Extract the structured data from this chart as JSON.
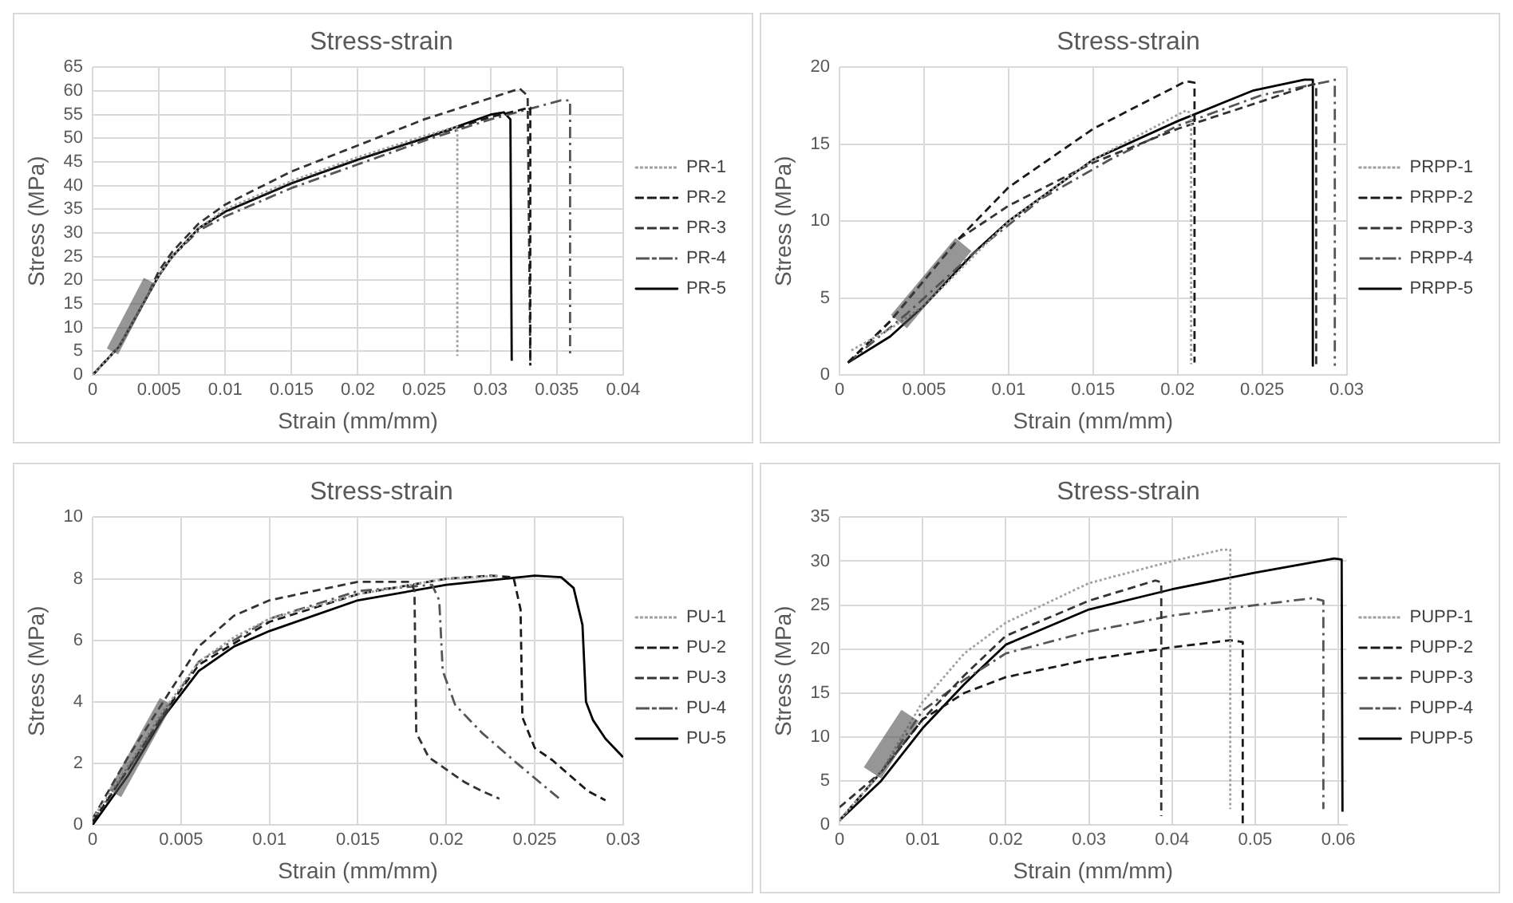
{
  "chart_data": [
    {
      "type": "line",
      "title": "Stress-strain",
      "xlabel": "Strain (mm/mm)",
      "ylabel": "Stress (MPa)",
      "xlim": [
        0,
        0.04
      ],
      "xticks": [
        0,
        0.005,
        0.01,
        0.015,
        0.02,
        0.025,
        0.03,
        0.035,
        0.04
      ],
      "ylim": [
        0,
        65
      ],
      "yticks": [
        0,
        5,
        10,
        15,
        20,
        25,
        30,
        35,
        40,
        45,
        50,
        55,
        60,
        65
      ],
      "grid": true,
      "legend": "right",
      "marker": "none",
      "series": [
        {
          "name": "PR-1",
          "color": "#a0a0a0",
          "line_style": "dotted",
          "x": [
            0,
            0.002,
            0.004,
            0.005,
            0.006,
            0.008,
            0.01,
            0.015,
            0.02,
            0.025,
            0.0275,
            0.0275
          ],
          "values": [
            0,
            6,
            16,
            21,
            25,
            31,
            35,
            41,
            46,
            50.5,
            52.5,
            4
          ]
        },
        {
          "name": "PR-2",
          "color": "#1a1a1a",
          "line_style": "dashed",
          "x": [
            0,
            0.002,
            0.004,
            0.005,
            0.006,
            0.008,
            0.01,
            0.015,
            0.02,
            0.025,
            0.03,
            0.033,
            0.033
          ],
          "values": [
            0,
            6,
            16,
            21,
            25,
            31,
            34.5,
            40.5,
            45.5,
            50,
            54.5,
            56.5,
            2
          ]
        },
        {
          "name": "PR-3",
          "color": "#333333",
          "line_style": "dashed",
          "x": [
            0,
            0.002,
            0.004,
            0.005,
            0.006,
            0.008,
            0.01,
            0.015,
            0.02,
            0.025,
            0.03,
            0.0322,
            0.0328,
            0.033
          ],
          "values": [
            0,
            6,
            16,
            22,
            26,
            32,
            36,
            43,
            48.5,
            54,
            58.5,
            60.5,
            59,
            3
          ]
        },
        {
          "name": "PR-4",
          "color": "#555555",
          "line_style": "dashdot",
          "x": [
            0,
            0.002,
            0.004,
            0.005,
            0.006,
            0.008,
            0.01,
            0.015,
            0.02,
            0.025,
            0.03,
            0.0353,
            0.036,
            0.036
          ],
          "values": [
            0,
            6,
            16,
            21,
            25,
            30.5,
            33.5,
            39.5,
            44.5,
            49.5,
            54,
            58,
            58,
            4
          ]
        },
        {
          "name": "PR-5",
          "color": "#000000",
          "line_style": "solid",
          "x": [
            0,
            0.002,
            0.004,
            0.005,
            0.006,
            0.008,
            0.01,
            0.015,
            0.02,
            0.025,
            0.03,
            0.031,
            0.0315,
            0.0316
          ],
          "values": [
            0,
            6,
            16,
            21,
            25,
            31,
            34.5,
            40.5,
            45.5,
            50,
            55,
            55.5,
            54,
            3
          ]
        }
      ]
    },
    {
      "type": "line",
      "title": "Stress-strain",
      "xlabel": "Strain (mm/mm)",
      "ylabel": "Stress (MPa)",
      "xlim": [
        0,
        0.03
      ],
      "xticks": [
        0,
        0.005,
        0.01,
        0.015,
        0.02,
        0.025,
        0.03
      ],
      "ylim": [
        0,
        20
      ],
      "yticks": [
        0,
        5,
        10,
        15,
        20
      ],
      "grid": true,
      "legend": "right",
      "marker": "none",
      "series": [
        {
          "name": "PRPP-1",
          "color": "#a0a0a0",
          "line_style": "dotted",
          "x": [
            0.0007,
            0.003,
            0.005,
            0.01,
            0.015,
            0.0205,
            0.0208,
            0.0208
          ],
          "values": [
            1.6,
            3,
            4.5,
            10,
            14,
            17.2,
            17,
            0.7
          ]
        },
        {
          "name": "PRPP-2",
          "color": "#1a1a1a",
          "line_style": "dashed",
          "x": [
            0.0005,
            0.003,
            0.007,
            0.01,
            0.015,
            0.0205,
            0.021,
            0.021
          ],
          "values": [
            0.8,
            3.5,
            8.8,
            12.2,
            16,
            19.1,
            19,
            0.8
          ]
        },
        {
          "name": "PRPP-3",
          "color": "#333333",
          "line_style": "dashed",
          "x": [
            0.0005,
            0.003,
            0.007,
            0.01,
            0.015,
            0.02,
            0.025,
            0.028,
            0.0282,
            0.0282
          ],
          "values": [
            0.8,
            3.5,
            8.8,
            11,
            13.8,
            16,
            17.8,
            18.9,
            18.9,
            0.6
          ]
        },
        {
          "name": "PRPP-4",
          "color": "#555555",
          "line_style": "dashdot",
          "x": [
            0.0005,
            0.004,
            0.008,
            0.012,
            0.016,
            0.02,
            0.025,
            0.029,
            0.0293,
            0.0293
          ],
          "values": [
            0.8,
            4,
            8,
            11.5,
            14,
            16.2,
            18.2,
            19.1,
            19.2,
            0.6
          ]
        },
        {
          "name": "PRPP-5",
          "color": "#000000",
          "line_style": "solid",
          "x": [
            0.0005,
            0.003,
            0.005,
            0.008,
            0.01,
            0.015,
            0.02,
            0.0245,
            0.0275,
            0.028,
            0.028
          ],
          "values": [
            0.8,
            2.5,
            4.5,
            8,
            10,
            14,
            16.5,
            18.5,
            19.2,
            19.2,
            0.6
          ]
        }
      ]
    },
    {
      "type": "line",
      "title": "Stress-strain",
      "xlabel": "Strain (mm/mm)",
      "ylabel": "Stress (MPa)",
      "xlim": [
        0,
        0.03
      ],
      "xticks": [
        0,
        0.005,
        0.01,
        0.015,
        0.02,
        0.025,
        0.03
      ],
      "ylim": [
        0,
        10
      ],
      "yticks": [
        0,
        2,
        4,
        6,
        8,
        10
      ],
      "grid": true,
      "legend": "right",
      "marker": "none",
      "series": [
        {
          "name": "PU-1",
          "color": "#a0a0a0",
          "line_style": "dotted",
          "x": [
            0,
            0.002,
            0.004,
            0.006,
            0.008,
            0.01,
            0.015,
            0.02,
            0.023
          ],
          "values": [
            0.2,
            1.9,
            3.7,
            5.3,
            6.1,
            6.7,
            7.5,
            8,
            8.1
          ]
        },
        {
          "name": "PU-2",
          "color": "#1a1a1a",
          "line_style": "dashed",
          "x": [
            0,
            0.002,
            0.004,
            0.006,
            0.01,
            0.015,
            0.02,
            0.0225,
            0.0238,
            0.0242,
            0.0243,
            0.025,
            0.026,
            0.027,
            0.028,
            0.029
          ],
          "values": [
            0.1,
            1.8,
            3.6,
            5.2,
            6.6,
            7.5,
            8,
            8.1,
            8.05,
            7,
            3.5,
            2.5,
            2.1,
            1.6,
            1.1,
            0.8
          ]
        },
        {
          "name": "PU-3",
          "color": "#333333",
          "line_style": "dashed",
          "x": [
            0,
            0.002,
            0.004,
            0.006,
            0.008,
            0.01,
            0.015,
            0.018,
            0.0182,
            0.0183,
            0.019,
            0.02,
            0.021,
            0.022,
            0.023
          ],
          "values": [
            0.2,
            2.2,
            4,
            5.8,
            6.8,
            7.3,
            7.9,
            7.9,
            7.6,
            3,
            2.2,
            1.8,
            1.4,
            1.1,
            0.85
          ]
        },
        {
          "name": "PU-4",
          "color": "#555555",
          "line_style": "dashdot",
          "x": [
            0,
            0.002,
            0.004,
            0.006,
            0.01,
            0.015,
            0.0192,
            0.0196,
            0.0198,
            0.0205,
            0.022,
            0.024,
            0.0265
          ],
          "values": [
            0.1,
            1.8,
            3.6,
            5.3,
            6.7,
            7.6,
            7.8,
            7.3,
            5,
            3.9,
            3,
            2,
            0.8
          ]
        },
        {
          "name": "PU-5",
          "color": "#000000",
          "line_style": "solid",
          "x": [
            0,
            0.002,
            0.004,
            0.006,
            0.008,
            0.01,
            0.015,
            0.02,
            0.025,
            0.0265,
            0.0272,
            0.0277,
            0.0279,
            0.0283,
            0.029,
            0.03
          ],
          "values": [
            0,
            1.6,
            3.5,
            5,
            5.8,
            6.3,
            7.3,
            7.8,
            8.1,
            8.05,
            7.7,
            6.5,
            4,
            3.4,
            2.8,
            2.2
          ]
        }
      ]
    },
    {
      "type": "line",
      "title": "Stress-strain",
      "xlabel": "Strain (mm/mm)",
      "ylabel": "Stress (MPa)",
      "xlim": [
        0,
        0.061
      ],
      "xticks": [
        0,
        0.01,
        0.02,
        0.03,
        0.04,
        0.05,
        0.06
      ],
      "ylim": [
        0,
        35
      ],
      "yticks": [
        0,
        5,
        10,
        15,
        20,
        25,
        30,
        35
      ],
      "grid": true,
      "legend": "right",
      "marker": "none",
      "series": [
        {
          "name": "PUPP-1",
          "color": "#a0a0a0",
          "line_style": "dotted",
          "x": [
            0,
            0.005,
            0.01,
            0.015,
            0.02,
            0.03,
            0.04,
            0.046,
            0.047,
            0.047
          ],
          "values": [
            0.5,
            6,
            14,
            19.5,
            23,
            27.5,
            30,
            31.3,
            31.3,
            1.8
          ]
        },
        {
          "name": "PUPP-2",
          "color": "#1a1a1a",
          "line_style": "dashed",
          "x": [
            0,
            0.005,
            0.01,
            0.015,
            0.02,
            0.03,
            0.04,
            0.047,
            0.0485,
            0.0485
          ],
          "values": [
            0.5,
            6,
            12,
            15,
            16.8,
            18.8,
            20.2,
            21,
            20.8,
            0
          ]
        },
        {
          "name": "PUPP-3",
          "color": "#333333",
          "line_style": "dashed",
          "x": [
            0,
            0.005,
            0.01,
            0.015,
            0.02,
            0.03,
            0.038,
            0.0387,
            0.0387
          ],
          "values": [
            2,
            6,
            12,
            17,
            21.5,
            25.5,
            27.8,
            27.6,
            1
          ]
        },
        {
          "name": "PUPP-4",
          "color": "#555555",
          "line_style": "dashdot",
          "x": [
            0,
            0.005,
            0.01,
            0.015,
            0.02,
            0.03,
            0.04,
            0.05,
            0.057,
            0.0582,
            0.0582
          ],
          "values": [
            0.5,
            6,
            13,
            16.5,
            19.5,
            22,
            23.8,
            25,
            25.8,
            25.5,
            1.8
          ]
        },
        {
          "name": "PUPP-5",
          "color": "#000000",
          "line_style": "solid",
          "x": [
            0,
            0.005,
            0.01,
            0.015,
            0.02,
            0.03,
            0.04,
            0.05,
            0.0595,
            0.0604,
            0.0605
          ],
          "values": [
            0.5,
            5,
            11,
            16,
            20.5,
            24.5,
            26.8,
            28.7,
            30.3,
            30.2,
            1.5
          ]
        }
      ]
    }
  ]
}
